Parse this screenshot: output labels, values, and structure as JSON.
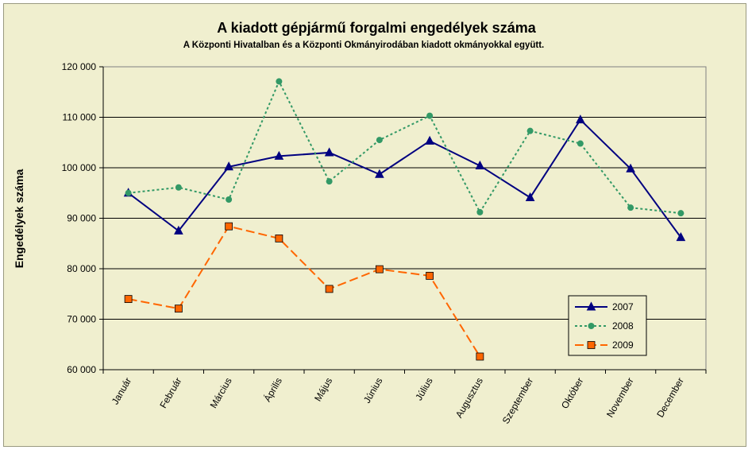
{
  "chart_data": {
    "type": "line",
    "title": "A  kiadott gépjármű forgalmi engedélyek száma",
    "subtitle": "A  Központi Hivatalban és a Központi Okmányirodában kiadott okmányokkal együtt.",
    "xlabel": "",
    "ylabel": "Engedélyek száma",
    "ylim": [
      60000,
      120000
    ],
    "yticks": [
      60000,
      70000,
      80000,
      90000,
      100000,
      110000,
      120000
    ],
    "ytick_labels": [
      "60 000",
      "70 000",
      "80 000",
      "90 000",
      "100 000",
      "110 000",
      "120 000"
    ],
    "grid": true,
    "legend_position": "bottom-right",
    "categories": [
      "Január",
      "Február",
      "Március",
      "Április",
      "Május",
      "Június",
      "Július",
      "Augusztus",
      "Szeptember",
      "Október",
      "November",
      "December"
    ],
    "series": [
      {
        "name": "2007",
        "color": "#000080",
        "line": "solid",
        "marker": "triangle",
        "values": [
          95000,
          87500,
          100200,
          102300,
          103000,
          98700,
          105300,
          100400,
          94100,
          109500,
          99800,
          86200
        ]
      },
      {
        "name": "2008",
        "color": "#339966",
        "line": "dotted",
        "marker": "circle",
        "values": [
          95000,
          96100,
          93700,
          117100,
          97300,
          105500,
          110300,
          91200,
          107300,
          104800,
          92100,
          91000
        ]
      },
      {
        "name": "2009",
        "color": "#ff6600",
        "line": "dashed",
        "marker": "square",
        "values": [
          74000,
          72100,
          88400,
          86000,
          76000,
          79900,
          78600,
          62600,
          null,
          null,
          null,
          null
        ]
      }
    ]
  }
}
